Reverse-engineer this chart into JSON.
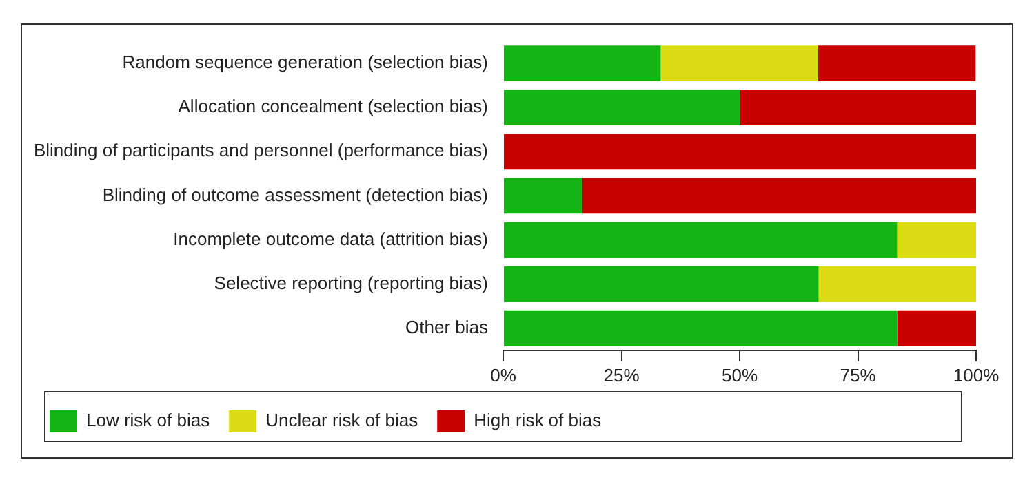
{
  "chart_data": {
    "type": "bar",
    "orientation": "horizontal",
    "stacked": true,
    "categories": [
      "Random sequence generation (selection bias)",
      "Allocation concealment (selection bias)",
      "Blinding of participants and personnel (performance bias)",
      "Blinding of outcome assessment (detection bias)",
      "Incomplete outcome data (attrition bias)",
      "Selective reporting (reporting bias)",
      "Other bias"
    ],
    "series": [
      {
        "name": "Low risk of bias",
        "color": "#14b414",
        "values": [
          33.3,
          50,
          0,
          16.7,
          83.3,
          66.7,
          83.3
        ]
      },
      {
        "name": "Unclear risk of bias",
        "color": "#dcdc14",
        "values": [
          33.3,
          0,
          0,
          0,
          16.7,
          33.3,
          0
        ]
      },
      {
        "name": "High risk of bias",
        "color": "#c80000",
        "values": [
          33.3,
          50,
          100,
          83.3,
          0,
          0,
          16.7
        ]
      }
    ],
    "xlim": [
      0,
      100
    ],
    "xticks": [
      {
        "value": 0,
        "label": "0%"
      },
      {
        "value": 25,
        "label": "25%"
      },
      {
        "value": 50,
        "label": "50%"
      },
      {
        "value": 75,
        "label": "75%"
      },
      {
        "value": 100,
        "label": "100%"
      }
    ],
    "grid": false,
    "legend": "bottom"
  }
}
